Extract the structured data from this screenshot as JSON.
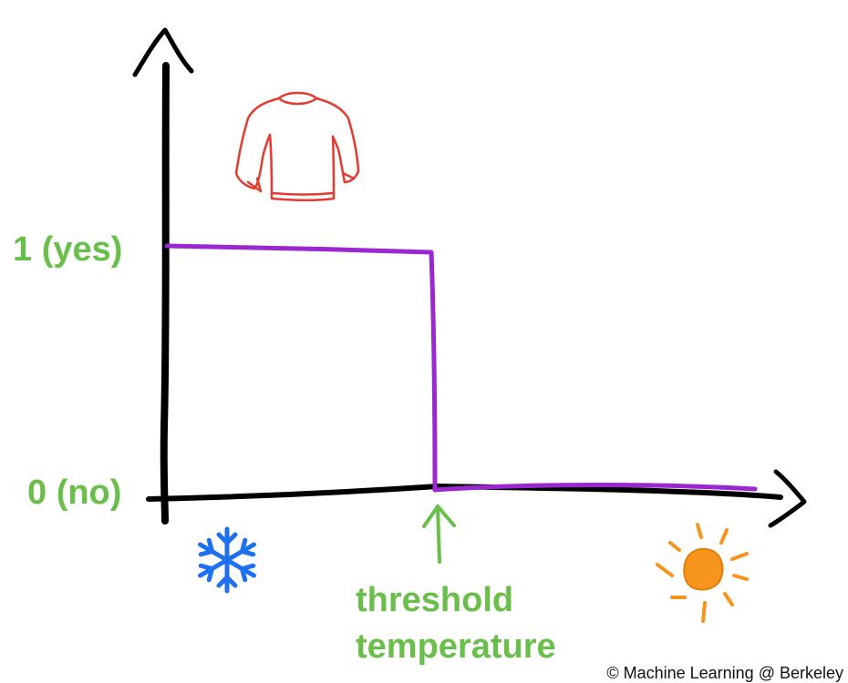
{
  "chart_data": {
    "type": "line",
    "y_ticks": [
      "1 (yes)",
      "0 (no)"
    ],
    "threshold_label_line1": "threshold",
    "threshold_label_line2": "temperature",
    "step_function": {
      "y_before_threshold": 1,
      "y_after_threshold": 0
    }
  },
  "icons": {
    "top_left": "sweater-icon",
    "bottom_left": "snowflake-icon",
    "bottom_right": "sun-icon",
    "threshold_marker": "up-arrow-icon"
  },
  "copyright": "© Machine Learning @ Berkeley",
  "colors": {
    "axes": "#000000",
    "step_line": "#9b27d0",
    "labels": "#6abf4b",
    "sweater": "#e53a2f",
    "snowflake": "#1f6ff2",
    "sun": "#f7941d"
  }
}
